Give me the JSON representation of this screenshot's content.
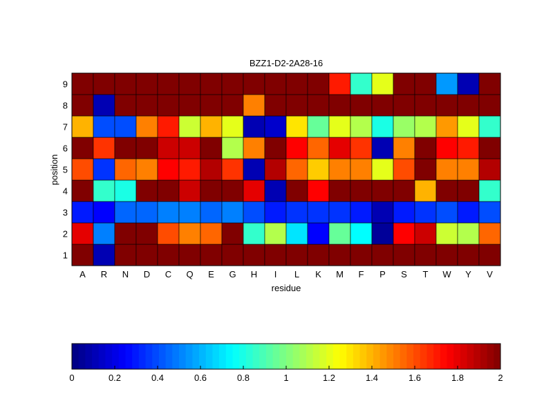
{
  "chart_data": {
    "type": "heatmap",
    "title": "BZZ1-D2-2A28-16",
    "xlabel": "residue",
    "ylabel": "position",
    "x_categories": [
      "A",
      "R",
      "N",
      "D",
      "C",
      "Q",
      "E",
      "G",
      "H",
      "I",
      "L",
      "K",
      "M",
      "F",
      "P",
      "S",
      "T",
      "W",
      "Y",
      "V"
    ],
    "y_categories": [
      "1",
      "2",
      "3",
      "4",
      "5",
      "6",
      "7",
      "8",
      "9"
    ],
    "values": [
      [
        2.0,
        0.1,
        2.0,
        2.0,
        2.0,
        2.0,
        2.0,
        2.0,
        2.0,
        2.0,
        2.0,
        2.0,
        2.0,
        2.0,
        2.0,
        2.0,
        2.0,
        2.0,
        2.0,
        2.0
      ],
      [
        1.8,
        0.5,
        2.0,
        2.0,
        1.6,
        1.5,
        1.55,
        2.0,
        0.85,
        1.1,
        0.7,
        0.25,
        0.95,
        0.75,
        0.05,
        1.75,
        1.85,
        1.15,
        1.1,
        1.55
      ],
      [
        0.3,
        0.25,
        0.45,
        0.45,
        0.5,
        0.5,
        0.45,
        0.5,
        0.4,
        0.3,
        0.35,
        0.35,
        0.35,
        0.3,
        0.1,
        0.3,
        0.35,
        0.4,
        0.3,
        0.4
      ],
      [
        2.0,
        0.85,
        0.8,
        2.0,
        2.0,
        1.85,
        2.0,
        2.0,
        1.8,
        0.1,
        2.0,
        1.75,
        2.0,
        2.0,
        2.0,
        2.0,
        1.4,
        2.0,
        2.0,
        0.85
      ],
      [
        1.6,
        0.35,
        1.55,
        1.5,
        1.75,
        1.7,
        1.9,
        1.65,
        0.1,
        1.9,
        1.55,
        1.35,
        1.5,
        1.5,
        1.2,
        1.6,
        2.0,
        1.5,
        1.5,
        1.9
      ],
      [
        2.0,
        1.65,
        2.0,
        2.0,
        1.85,
        1.85,
        2.0,
        1.1,
        1.5,
        2.0,
        1.75,
        1.55,
        1.8,
        1.65,
        0.1,
        1.5,
        2.0,
        1.75,
        1.7,
        2.0
      ],
      [
        1.4,
        0.4,
        0.4,
        1.5,
        1.7,
        1.15,
        1.4,
        1.2,
        0.1,
        0.15,
        1.3,
        0.95,
        1.2,
        1.1,
        0.8,
        1.05,
        1.1,
        1.45,
        1.2,
        0.85
      ],
      [
        2.0,
        0.1,
        2.0,
        2.0,
        2.0,
        2.0,
        2.0,
        2.0,
        1.5,
        2.0,
        2.0,
        2.0,
        2.0,
        2.0,
        2.0,
        2.0,
        2.0,
        2.0,
        2.0,
        2.0
      ],
      [
        2.0,
        2.0,
        2.0,
        2.0,
        2.0,
        2.0,
        2.0,
        2.0,
        2.0,
        2.0,
        2.0,
        2.0,
        1.7,
        0.85,
        1.2,
        2.0,
        2.0,
        0.55,
        0.1,
        2.0
      ]
    ],
    "value_range": [
      0,
      2
    ],
    "colormap": "jet",
    "colorbar": {
      "orientation": "horizontal",
      "placement": "bottom",
      "ticks": [
        "0",
        "0.2",
        "0.4",
        "0.6",
        "0.8",
        "1",
        "1.2",
        "1.4",
        "1.6",
        "1.8",
        "2"
      ],
      "tick_values": [
        0,
        0.2,
        0.4,
        0.6,
        0.8,
        1.0,
        1.2,
        1.4,
        1.6,
        1.8,
        2.0
      ]
    },
    "grid": true,
    "legend": "none"
  }
}
